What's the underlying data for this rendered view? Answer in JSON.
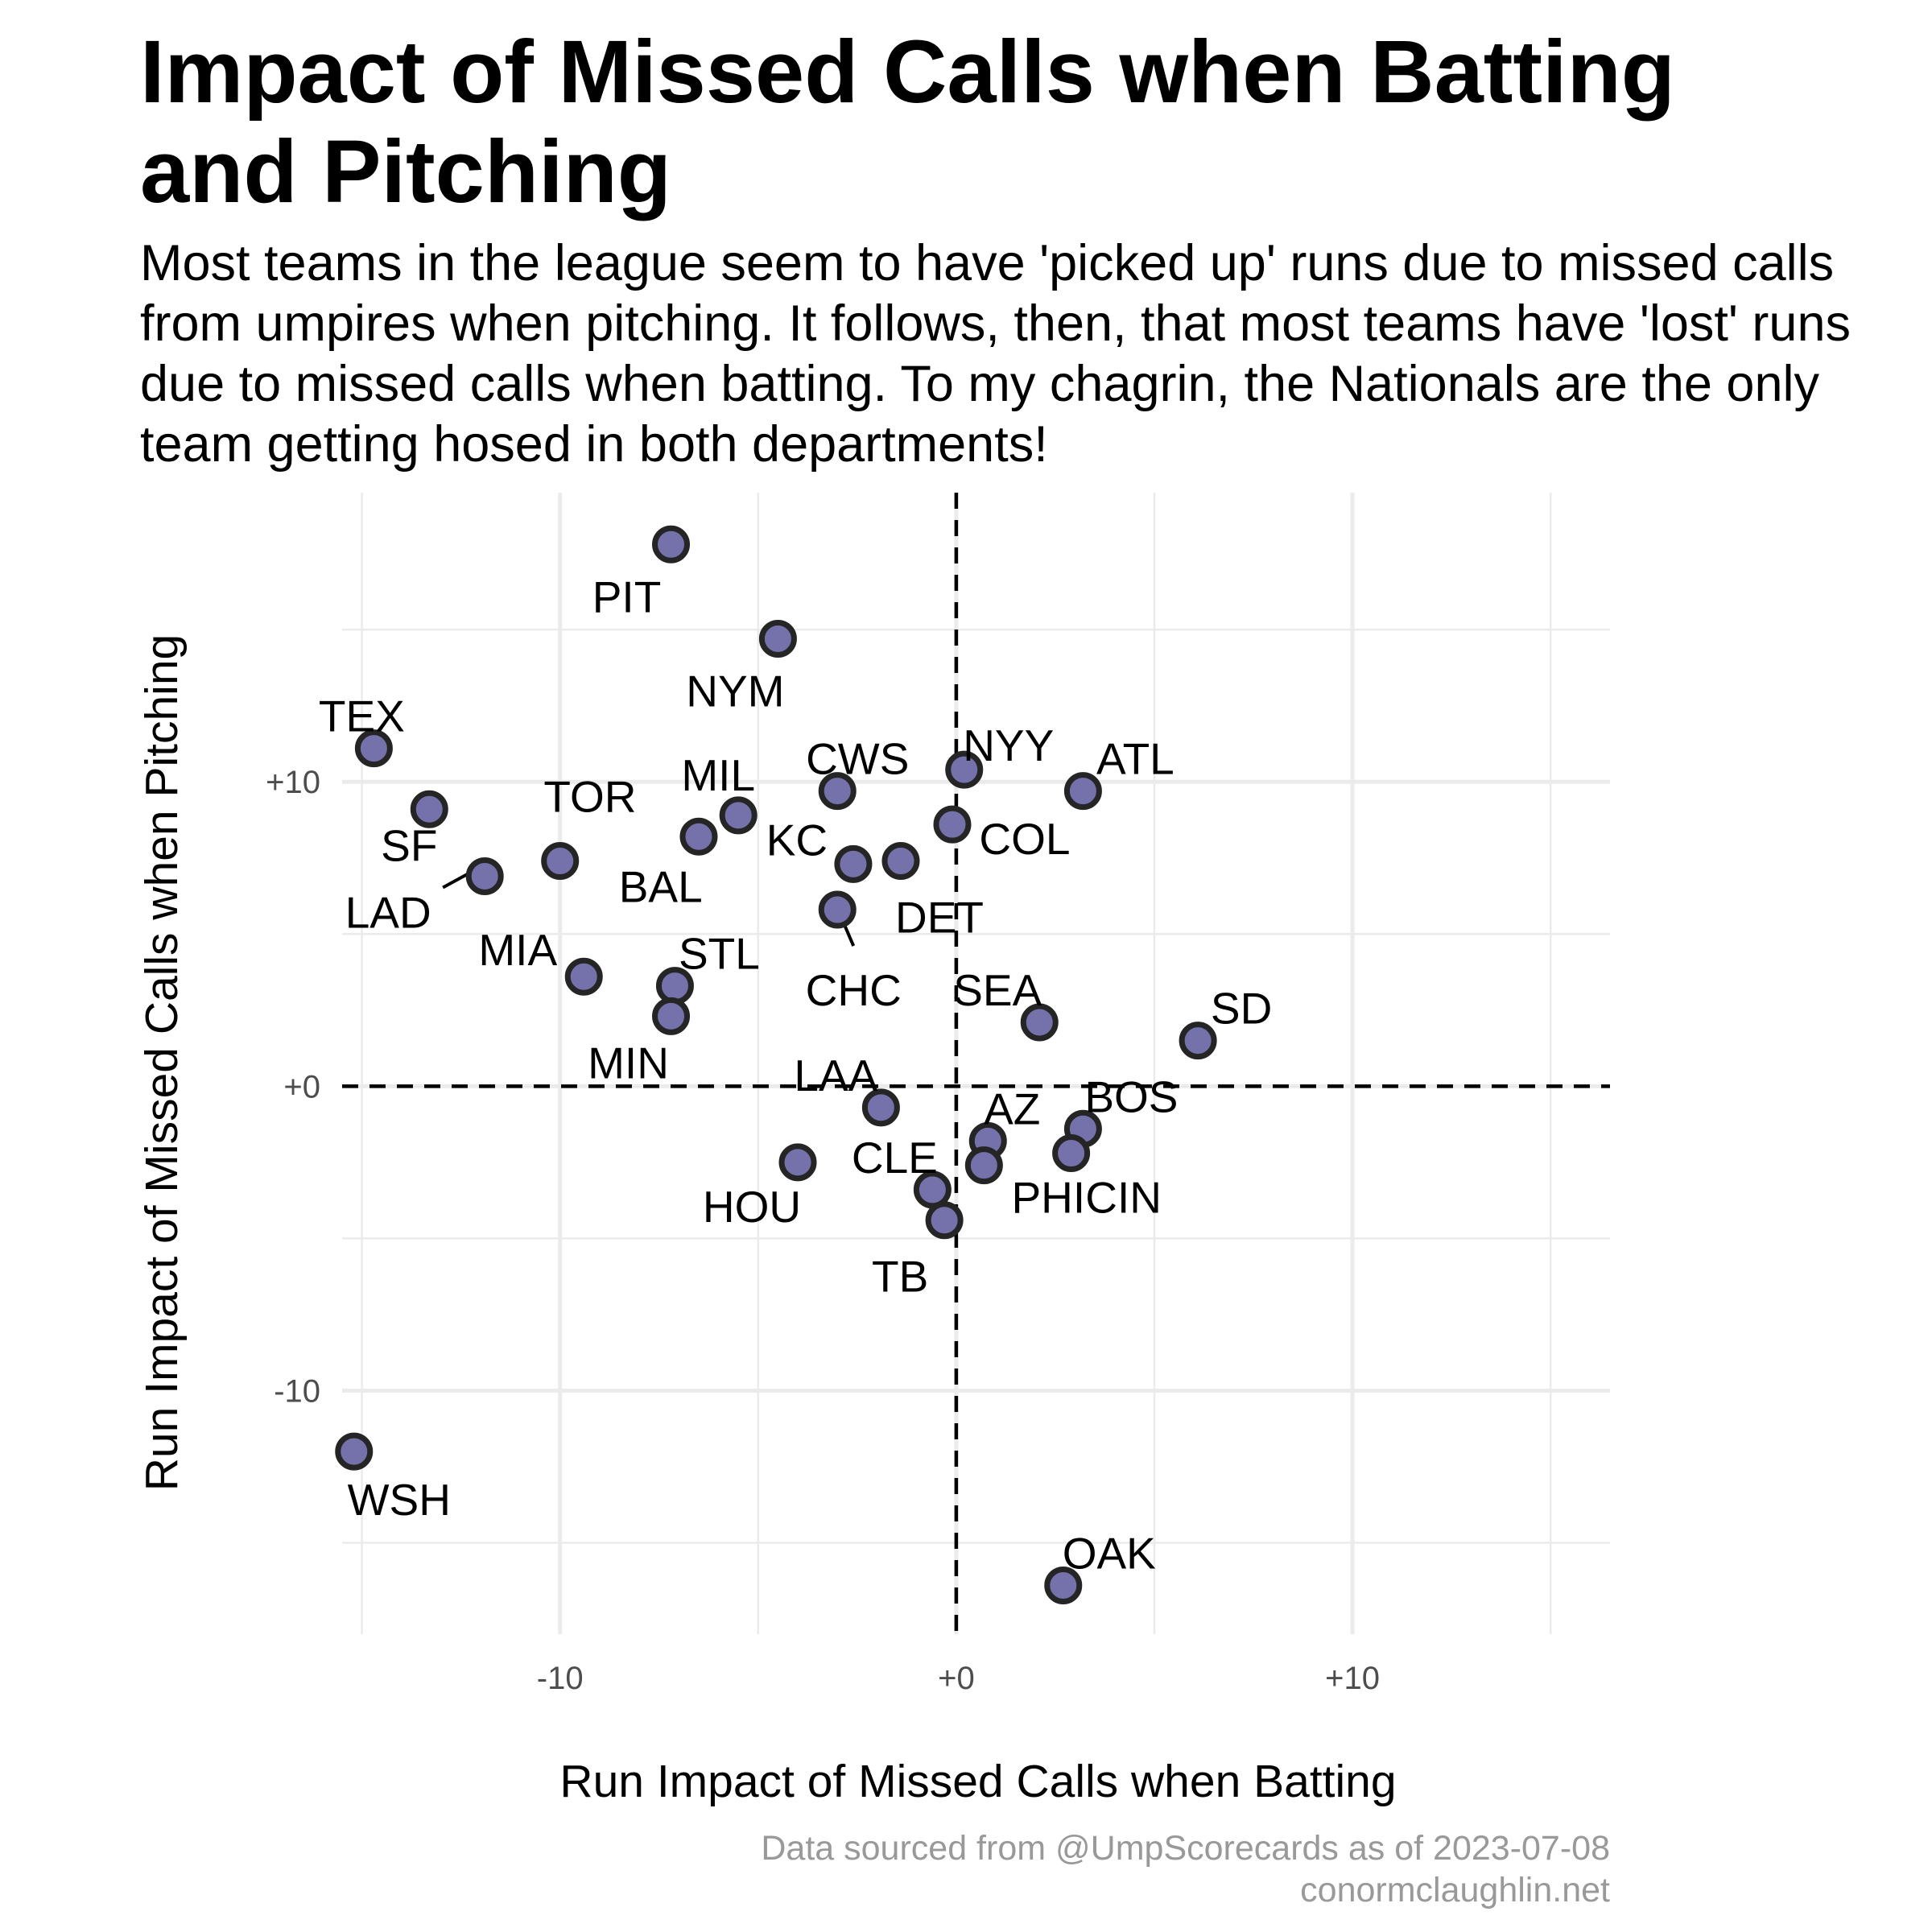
{
  "chart_data": {
    "type": "scatter",
    "title": "Impact of Missed Calls when Batting and Pitching",
    "subtitle": "Most teams in the league seem to have 'picked up' runs due to missed calls from umpires when pitching. It follows, then, that most teams have 'lost' runs due to missed calls when batting. To my chagrin, the Nationals are the only team getting hosed in both departments!",
    "xlabel": "Run Impact of Missed Calls when Batting",
    "ylabel": "Run Impact of Missed Calls when Pitching",
    "xlim": [
      -15.5,
      16.5
    ],
    "ylim": [
      -18,
      19.5
    ],
    "x_ticks": [
      -10,
      0,
      10
    ],
    "x_tick_labels": [
      "-10",
      "+0",
      "+10"
    ],
    "y_ticks": [
      -10,
      0,
      10
    ],
    "y_tick_labels": [
      "-10",
      "+0",
      "+10"
    ],
    "grid": true,
    "reference_lines": {
      "x": 0,
      "y": 0,
      "style": "dashed"
    },
    "point_color": "#7471ab",
    "points": [
      {
        "team": "PIT",
        "x": -7.2,
        "y": 17.8
      },
      {
        "team": "NYM",
        "x": -4.5,
        "y": 14.7
      },
      {
        "team": "TEX",
        "x": -14.7,
        "y": 11.1
      },
      {
        "team": "NYY",
        "x": 0.2,
        "y": 10.4
      },
      {
        "team": "ATL",
        "x": 3.2,
        "y": 9.7
      },
      {
        "team": "CWS",
        "x": -3.0,
        "y": 9.7
      },
      {
        "team": "MIL",
        "x": -5.5,
        "y": 8.9
      },
      {
        "team": "SF",
        "x": -13.3,
        "y": 9.1
      },
      {
        "team": "COL",
        "x": -0.1,
        "y": 8.6
      },
      {
        "team": "KC",
        "x": -2.6,
        "y": 7.3
      },
      {
        "team": "TOR",
        "x": -6.5,
        "y": 8.2
      },
      {
        "team": "BAL",
        "x": -10.0,
        "y": 7.4
      },
      {
        "team": "DET",
        "x": -1.4,
        "y": 7.4
      },
      {
        "team": "LAD",
        "x": -11.9,
        "y": 6.9
      },
      {
        "team": "CHC",
        "x": -3.0,
        "y": 5.8
      },
      {
        "team": "MIA",
        "x": -9.4,
        "y": 3.6
      },
      {
        "team": "STL",
        "x": -7.1,
        "y": 3.3
      },
      {
        "team": "MIN",
        "x": -7.2,
        "y": 2.3
      },
      {
        "team": "SEA",
        "x": 2.1,
        "y": 2.1
      },
      {
        "team": "SD",
        "x": 6.1,
        "y": 1.5
      },
      {
        "team": "LAA",
        "x": -1.9,
        "y": -0.7
      },
      {
        "team": "BOS",
        "x": 3.2,
        "y": -1.4
      },
      {
        "team": "AZ",
        "x": 0.8,
        "y": -1.8
      },
      {
        "team": "CIN",
        "x": 2.9,
        "y": -2.2
      },
      {
        "team": "HOU",
        "x": -4.0,
        "y": -2.5
      },
      {
        "team": "CLE",
        "x": -0.6,
        "y": -3.4
      },
      {
        "team": "PHI",
        "x": 0.7,
        "y": -2.6
      },
      {
        "team": "TB",
        "x": -0.3,
        "y": -4.4
      },
      {
        "team": "WSH",
        "x": -15.2,
        "y": -12.0
      },
      {
        "team": "OAK",
        "x": 2.7,
        "y": -16.4
      }
    ],
    "caption": [
      "Data sourced from @UmpScorecards as of 2023-07-08",
      "conormclaughlin.net"
    ]
  }
}
